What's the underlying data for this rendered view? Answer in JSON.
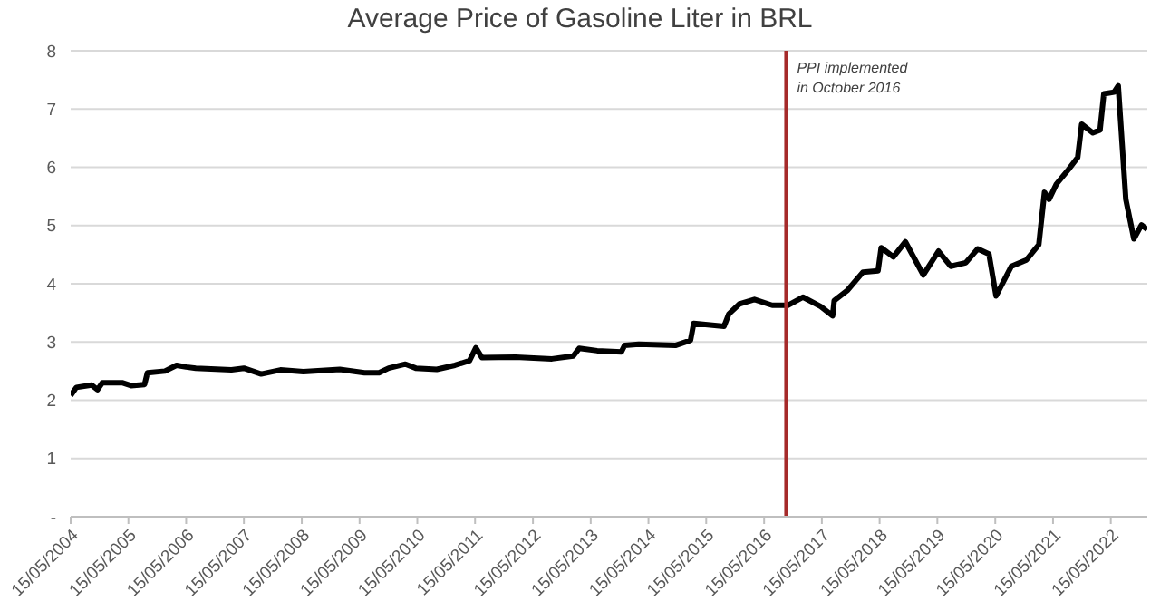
{
  "chart_data": {
    "type": "line",
    "title": "Average Price of Gasoline Liter in BRL",
    "xlim": [
      "2004-05-15",
      "2023-01-01"
    ],
    "xticks": [
      {
        "value": "2004-05-15",
        "label": "15/05/2004"
      },
      {
        "value": "2005-05-15",
        "label": "15/05/2005"
      },
      {
        "value": "2006-05-15",
        "label": "15/05/2006"
      },
      {
        "value": "2007-05-15",
        "label": "15/05/2007"
      },
      {
        "value": "2008-05-15",
        "label": "15/05/2008"
      },
      {
        "value": "2009-05-15",
        "label": "15/05/2009"
      },
      {
        "value": "2010-05-15",
        "label": "15/05/2010"
      },
      {
        "value": "2011-05-15",
        "label": "15/05/2011"
      },
      {
        "value": "2012-05-15",
        "label": "15/05/2012"
      },
      {
        "value": "2013-05-15",
        "label": "15/05/2013"
      },
      {
        "value": "2014-05-15",
        "label": "15/05/2014"
      },
      {
        "value": "2015-05-15",
        "label": "15/05/2015"
      },
      {
        "value": "2016-05-15",
        "label": "15/05/2016"
      },
      {
        "value": "2017-05-15",
        "label": "15/05/2017"
      },
      {
        "value": "2018-05-15",
        "label": "15/05/2018"
      },
      {
        "value": "2019-05-15",
        "label": "15/05/2019"
      },
      {
        "value": "2020-05-15",
        "label": "15/05/2020"
      },
      {
        "value": "2021-05-15",
        "label": "15/05/2021"
      },
      {
        "value": "2022-05-15",
        "label": "15/05/2022"
      }
    ],
    "ylim": [
      0,
      8
    ],
    "yticks": [
      {
        "value": 0,
        "label": "-"
      },
      1,
      2,
      3,
      4,
      5,
      6,
      7,
      8
    ],
    "grid": "y",
    "marker": "none",
    "line_style": "solid",
    "ref_lines": [
      {
        "axis": "x",
        "value": "2016-10-01",
        "label": "PPI implemented in October 2016",
        "color": "#a52a2a"
      }
    ],
    "x": [
      "2004-05-15",
      "2004-06-20",
      "2004-09-25",
      "2004-11-01",
      "2004-12-01",
      "2005-04-05",
      "2005-06-01",
      "2005-08-25",
      "2005-09-12",
      "2006-01-01",
      "2006-03-15",
      "2006-05-15",
      "2006-07-15",
      "2007-02-25",
      "2007-05-15",
      "2007-09-01",
      "2008-01-01",
      "2008-05-25",
      "2009-01-10",
      "2009-06-15",
      "2009-09-15",
      "2009-11-15",
      "2010-03-01",
      "2010-05-05",
      "2010-09-15",
      "2011-01-08",
      "2011-04-10",
      "2011-05-20",
      "2011-06-28",
      "2012-01-25",
      "2012-09-12",
      "2013-01-25",
      "2013-03-03",
      "2013-06-25",
      "2013-11-25",
      "2013-12-15",
      "2014-03-15",
      "2014-11-01",
      "2015-02-05",
      "2015-02-25",
      "2015-09-05",
      "2015-10-05",
      "2015-12-10",
      "2016-03-15",
      "2016-07-05",
      "2016-10-12",
      "2017-01-15",
      "2017-05-08",
      "2017-07-22",
      "2017-08-01",
      "2017-10-25",
      "2018-01-30",
      "2018-05-05",
      "2018-05-25",
      "2018-08-10",
      "2018-10-25",
      "2019-02-15",
      "2019-05-22",
      "2019-08-07",
      "2019-11-10",
      "2020-01-25",
      "2020-04-05",
      "2020-05-20",
      "2020-08-25",
      "2020-11-28",
      "2021-02-14",
      "2021-03-22",
      "2021-04-20",
      "2021-06-05",
      "2021-08-20",
      "2021-10-18",
      "2021-11-12",
      "2022-01-22",
      "2022-03-08",
      "2022-04-01",
      "2022-06-05",
      "2022-07-01",
      "2022-08-18",
      "2022-10-08",
      "2022-11-25",
      "2023-01-01"
    ],
    "series": [
      {
        "color": "#000000",
        "values": [
          2.08,
          2.22,
          2.26,
          2.18,
          2.3,
          2.3,
          2.25,
          2.27,
          2.47,
          2.5,
          2.6,
          2.57,
          2.55,
          2.52,
          2.55,
          2.45,
          2.52,
          2.49,
          2.53,
          2.47,
          2.47,
          2.55,
          2.62,
          2.55,
          2.53,
          2.6,
          2.68,
          2.9,
          2.73,
          2.74,
          2.71,
          2.76,
          2.89,
          2.85,
          2.83,
          2.94,
          2.96,
          2.94,
          3.03,
          3.32,
          3.27,
          3.48,
          3.65,
          3.73,
          3.63,
          3.63,
          3.77,
          3.61,
          3.45,
          3.71,
          3.89,
          4.2,
          4.22,
          4.62,
          4.46,
          4.72,
          4.15,
          4.56,
          4.3,
          4.36,
          4.6,
          4.51,
          3.79,
          4.3,
          4.41,
          4.67,
          5.57,
          5.45,
          5.71,
          5.96,
          6.17,
          6.74,
          6.59,
          6.64,
          7.26,
          7.29,
          7.4,
          5.45,
          4.77,
          5.01,
          4.93
        ]
      }
    ]
  }
}
